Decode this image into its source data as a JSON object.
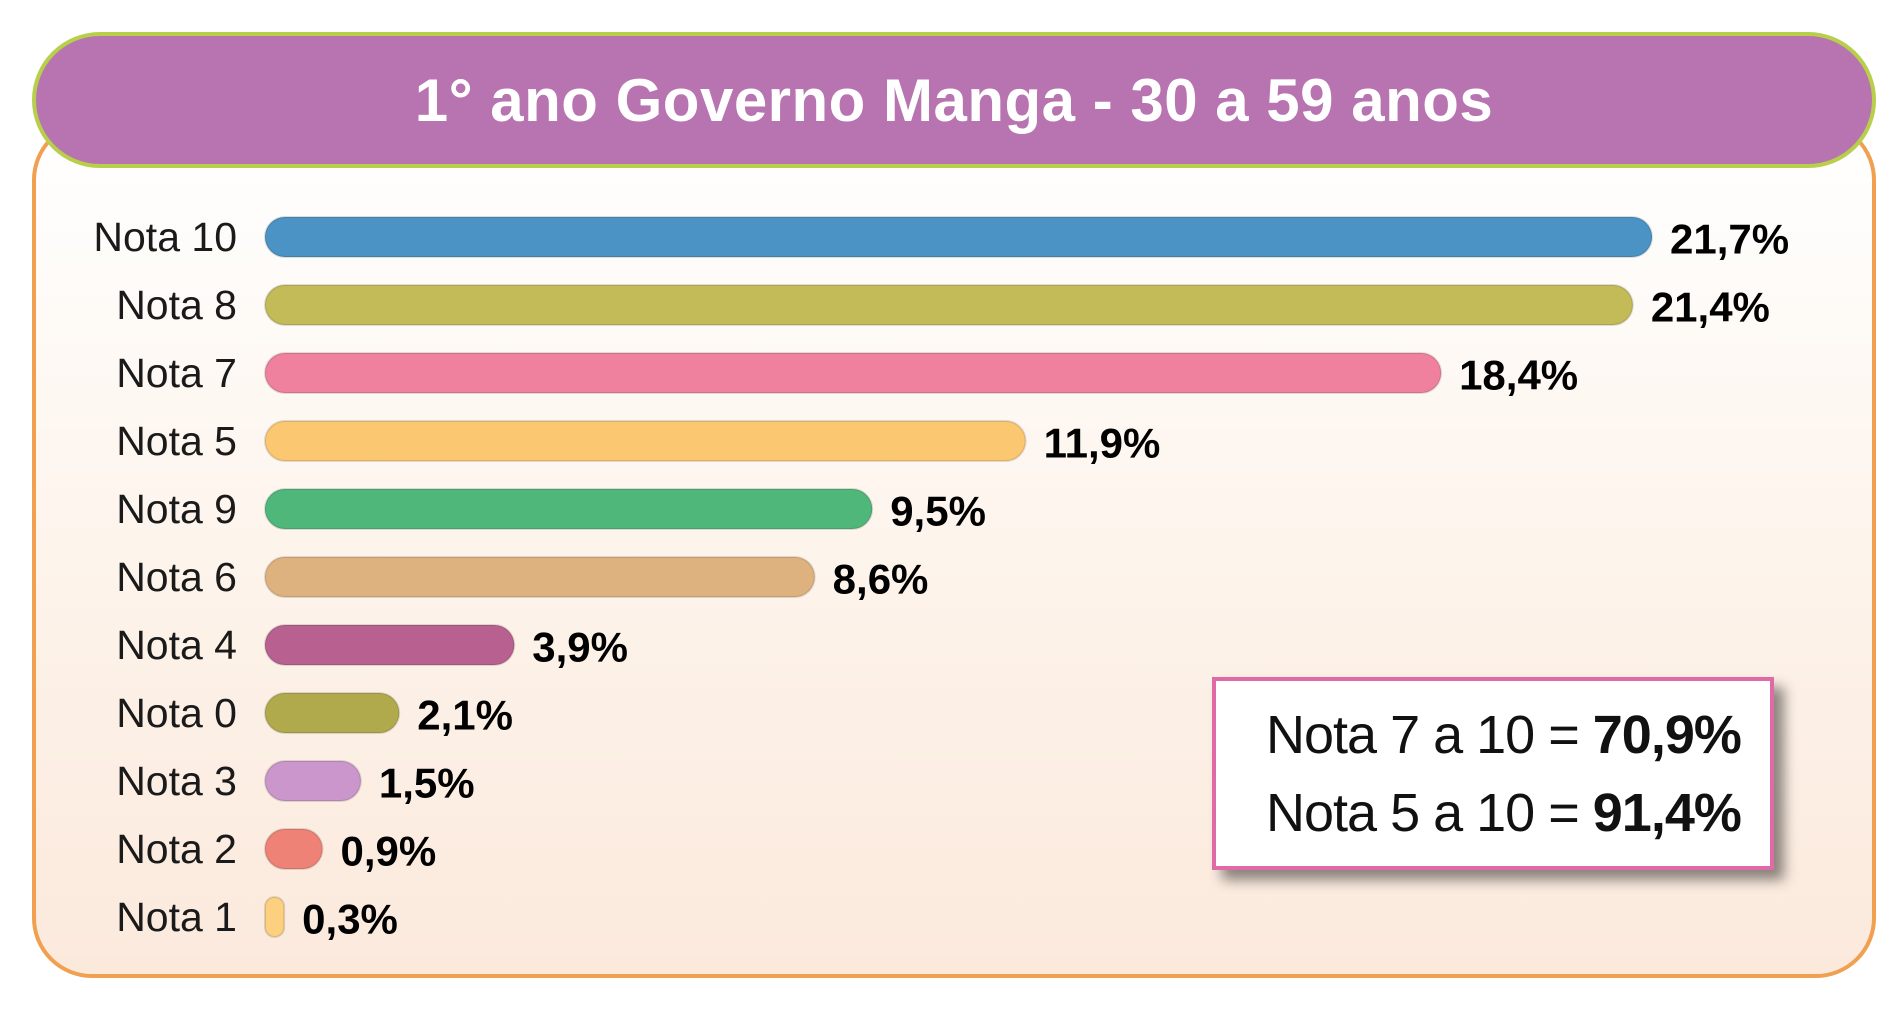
{
  "chart_data": {
    "type": "bar",
    "orientation": "horizontal",
    "title": "1° ano Governo Manga - 30 a 59 anos",
    "categories": [
      "Nota 10",
      "Nota 8",
      "Nota 7",
      "Nota 5",
      "Nota 9",
      "Nota 6",
      "Nota 4",
      "Nota 0",
      "Nota 3",
      "Nota 2",
      "Nota 1"
    ],
    "values": [
      21.7,
      21.4,
      18.4,
      11.9,
      9.5,
      8.6,
      3.9,
      2.1,
      1.5,
      0.9,
      0.3
    ],
    "value_labels": [
      "21,7%",
      "21,4%",
      "18,4%",
      "11,9%",
      "9,5%",
      "8,6%",
      "3,9%",
      "2,1%",
      "1,5%",
      "0,9%",
      "0,3%"
    ],
    "colors": [
      "#4a93c4",
      "#c3bb57",
      "#ef809e",
      "#fcc771",
      "#4fb779",
      "#deb27f",
      "#b86190",
      "#b0aa4c",
      "#cb96cb",
      "#ef8276",
      "#fcd07f"
    ],
    "xlim": [
      0,
      21.7
    ],
    "grid": false,
    "legend": "none"
  },
  "summary": [
    {
      "text": "Nota 7 a 10 = ",
      "value": "70,9%"
    },
    {
      "text": "Nota 5 a 10 = ",
      "value": "91,4%"
    }
  ]
}
